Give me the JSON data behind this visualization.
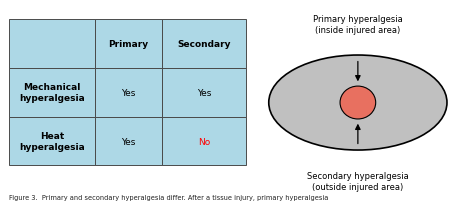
{
  "bg_color": "#ffffff",
  "table": {
    "col_labels": [
      "",
      "Primary",
      "Secondary"
    ],
    "row_labels": [
      "Mechanical\nhyperalgesia",
      "Heat\nhyperalgesia"
    ],
    "cells": [
      [
        "Yes",
        "Yes"
      ],
      [
        "Yes",
        "No"
      ]
    ],
    "light_blue": "#ADD8E6",
    "border_color": "#4a4a4a",
    "no_color": "#ff0000",
    "yes_color": "#000000"
  },
  "diagram": {
    "outer_color": "#c0c0c0",
    "inner_color": "#e87060",
    "label_top": "Primary hyperalgesia\n(inside injured area)",
    "label_bottom": "Secondary hyperalgesia\n(outside injured area)"
  },
  "caption": "Figure 3.  Primary and secondary hyperalgesia differ. After a tissue injury, primary hyperalgesia",
  "figure_size": [
    4.74,
    2.03
  ],
  "dpi": 100
}
